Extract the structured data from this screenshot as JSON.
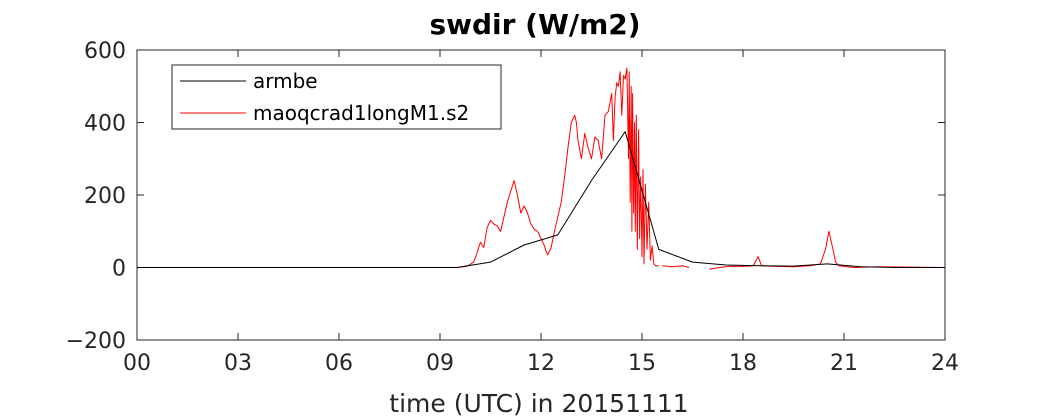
{
  "chart_data": {
    "type": "line",
    "title": "swdir  (W/m2)",
    "xlabel": "time (UTC) in 20151111",
    "ylabel": "",
    "xlim": [
      0,
      24
    ],
    "ylim": [
      -200,
      600
    ],
    "x_ticks": [
      0,
      3,
      6,
      9,
      12,
      15,
      18,
      21,
      24
    ],
    "x_tick_labels": [
      "00",
      "03",
      "06",
      "09",
      "12",
      "15",
      "18",
      "21",
      "24"
    ],
    "y_ticks": [
      -200,
      0,
      200,
      400,
      600
    ],
    "y_tick_labels": [
      "−200",
      "0",
      "200",
      "400",
      "600"
    ],
    "grid": false,
    "legend_position": "top-left",
    "series": [
      {
        "name": "armbe",
        "color": "#000000",
        "points": [
          [
            0,
            0
          ],
          [
            9.5,
            0
          ],
          [
            10.5,
            15
          ],
          [
            11.5,
            62
          ],
          [
            12.5,
            90
          ],
          [
            13.5,
            240
          ],
          [
            14.5,
            375
          ],
          [
            15.5,
            50
          ],
          [
            16.5,
            15
          ],
          [
            17.5,
            7
          ],
          [
            18.5,
            5
          ],
          [
            19.5,
            4
          ],
          [
            20.5,
            10
          ],
          [
            21.5,
            2
          ],
          [
            22.5,
            0
          ],
          [
            24,
            0
          ]
        ]
      },
      {
        "name": "maoqcrad1longM1.s2",
        "color": "#ff0000",
        "segments": [
          [
            [
              0,
              0
            ],
            [
              9.5,
              0
            ],
            [
              9.8,
              3
            ],
            [
              10.0,
              15
            ],
            [
              10.1,
              40
            ],
            [
              10.2,
              70
            ],
            [
              10.3,
              55
            ],
            [
              10.4,
              110
            ],
            [
              10.5,
              130
            ],
            [
              10.6,
              120
            ],
            [
              10.7,
              115
            ],
            [
              10.8,
              100
            ],
            [
              10.9,
              140
            ],
            [
              11.0,
              180
            ],
            [
              11.1,
              210
            ],
            [
              11.2,
              240
            ],
            [
              11.3,
              200
            ],
            [
              11.4,
              150
            ],
            [
              11.5,
              170
            ],
            [
              11.6,
              150
            ],
            [
              11.7,
              120
            ],
            [
              11.8,
              105
            ],
            [
              11.9,
              100
            ],
            [
              12.0,
              80
            ],
            [
              12.1,
              60
            ],
            [
              12.15,
              45
            ],
            [
              12.2,
              35
            ],
            [
              12.3,
              55
            ],
            [
              12.4,
              100
            ],
            [
              12.5,
              140
            ],
            [
              12.6,
              180
            ],
            [
              12.7,
              250
            ],
            [
              12.8,
              330
            ],
            [
              12.9,
              400
            ],
            [
              13.0,
              420
            ],
            [
              13.05,
              400
            ],
            [
              13.1,
              350
            ],
            [
              13.2,
              300
            ],
            [
              13.3,
              370
            ],
            [
              13.4,
              330
            ],
            [
              13.5,
              300
            ],
            [
              13.6,
              360
            ],
            [
              13.7,
              350
            ],
            [
              13.8,
              300
            ],
            [
              13.9,
              420
            ],
            [
              14.0,
              430
            ],
            [
              14.1,
              480
            ],
            [
              14.15,
              350
            ],
            [
              14.2,
              470
            ],
            [
              14.25,
              510
            ],
            [
              14.3,
              500
            ],
            [
              14.35,
              540
            ],
            [
              14.4,
              420
            ],
            [
              14.45,
              530
            ],
            [
              14.5,
              520
            ],
            [
              14.55,
              550
            ],
            [
              14.6,
              300
            ],
            [
              14.62,
              540
            ],
            [
              14.65,
              180
            ],
            [
              14.68,
              500
            ],
            [
              14.7,
              100
            ],
            [
              14.72,
              480
            ],
            [
              14.75,
              150
            ],
            [
              14.78,
              400
            ],
            [
              14.8,
              100
            ],
            [
              14.83,
              420
            ],
            [
              14.86,
              50
            ],
            [
              14.9,
              380
            ],
            [
              14.93,
              80
            ],
            [
              14.96,
              250
            ],
            [
              15.0,
              30
            ],
            [
              15.03,
              270
            ],
            [
              15.06,
              10
            ],
            [
              15.1,
              230
            ],
            [
              15.15,
              50
            ],
            [
              15.2,
              180
            ],
            [
              15.25,
              20
            ],
            [
              15.3,
              60
            ],
            [
              15.35,
              10
            ],
            [
              15.4,
              5
            ],
            [
              15.5,
              5
            ]
          ],
          [
            [
              15.6,
              5
            ],
            [
              15.9,
              2
            ],
            [
              16.2,
              5
            ],
            [
              16.4,
              0
            ]
          ],
          [
            [
              17.0,
              -5
            ],
            [
              17.3,
              0
            ],
            [
              17.6,
              3
            ],
            [
              18.0,
              3
            ],
            [
              18.3,
              5
            ],
            [
              18.45,
              30
            ],
            [
              18.55,
              5
            ],
            [
              19.0,
              3
            ],
            [
              19.5,
              2
            ],
            [
              20.0,
              5
            ],
            [
              20.3,
              10
            ],
            [
              20.45,
              50
            ],
            [
              20.55,
              100
            ],
            [
              20.65,
              60
            ],
            [
              20.75,
              15
            ],
            [
              20.85,
              5
            ],
            [
              21.0,
              3
            ],
            [
              21.3,
              0
            ],
            [
              22.0,
              2
            ],
            [
              23.0,
              1
            ],
            [
              24.0,
              0
            ]
          ]
        ]
      }
    ]
  }
}
